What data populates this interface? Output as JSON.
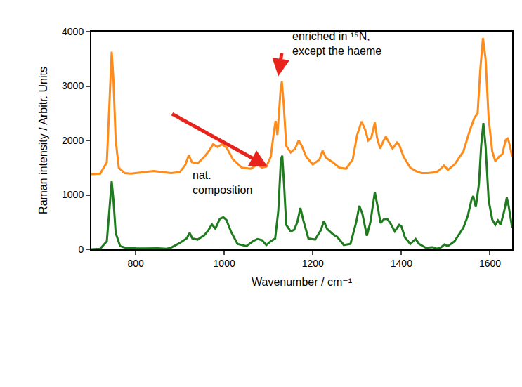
{
  "chart_data": {
    "type": "line",
    "x_label": "Wavenumber / cm⁻¹",
    "y_label": "Raman intensity / Arbitr. Units",
    "xlim": [
      700,
      1650
    ],
    "xticks": [
      800,
      1000,
      1200,
      1400,
      1600
    ],
    "ylim": [
      0,
      4000
    ],
    "yticks": [
      0,
      1000,
      2000,
      3000,
      4000
    ],
    "grid": false,
    "annotations": [
      "enriched in ¹⁵N, except the haeme",
      "nat. composition"
    ],
    "series": [
      {
        "name": "enriched in ¹⁵N, except the haeme",
        "color": "#ff8c1a",
        "x": [
          700,
          720,
          735,
          742,
          746,
          750,
          755,
          762,
          775,
          790,
          800,
          820,
          840,
          860,
          880,
          900,
          912,
          920,
          927,
          940,
          955,
          965,
          975,
          985,
          995,
          1005,
          1020,
          1040,
          1060,
          1075,
          1085,
          1095,
          1105,
          1112,
          1116,
          1120,
          1127,
          1130,
          1134,
          1140,
          1150,
          1160,
          1168,
          1175,
          1185,
          1200,
          1215,
          1222,
          1230,
          1245,
          1260,
          1275,
          1290,
          1300,
          1310,
          1318,
          1325,
          1332,
          1340,
          1345,
          1352,
          1360,
          1365,
          1372,
          1380,
          1390,
          1395,
          1405,
          1420,
          1432,
          1445,
          1460,
          1480,
          1490,
          1496,
          1505,
          1520,
          1540,
          1555,
          1565,
          1572,
          1578,
          1584,
          1590,
          1597,
          1605,
          1612,
          1620,
          1628,
          1635,
          1640,
          1645,
          1650
        ],
        "values": [
          1380,
          1390,
          1600,
          3000,
          3630,
          3100,
          2000,
          1500,
          1400,
          1390,
          1400,
          1420,
          1440,
          1420,
          1400,
          1420,
          1550,
          1730,
          1600,
          1580,
          1700,
          1800,
          1930,
          1880,
          1930,
          1870,
          1650,
          1500,
          1480,
          1560,
          1500,
          1520,
          1700,
          2150,
          2360,
          2100,
          2900,
          3080,
          2700,
          1900,
          1780,
          1850,
          2000,
          1900,
          1700,
          1560,
          1650,
          1810,
          1680,
          1600,
          1500,
          1480,
          1650,
          2100,
          2350,
          2200,
          2000,
          2050,
          2330,
          2050,
          1850,
          2000,
          2070,
          1960,
          1850,
          1960,
          1920,
          1700,
          1500,
          1440,
          1400,
          1400,
          1420,
          1490,
          1540,
          1460,
          1560,
          1800,
          2200,
          2420,
          2500,
          3300,
          3880,
          3500,
          2400,
          1800,
          1620,
          1700,
          1750,
          2000,
          2050,
          1900,
          1700
        ]
      },
      {
        "name": "nat. composition",
        "color": "#1e7b1e",
        "x": [
          700,
          720,
          735,
          742,
          746,
          750,
          755,
          765,
          780,
          790,
          800,
          820,
          850,
          870,
          880,
          900,
          915,
          922,
          928,
          940,
          955,
          965,
          972,
          980,
          990,
          998,
          1005,
          1015,
          1030,
          1050,
          1065,
          1075,
          1085,
          1095,
          1105,
          1115,
          1122,
          1128,
          1131,
          1135,
          1140,
          1150,
          1158,
          1165,
          1172,
          1178,
          1190,
          1205,
          1218,
          1225,
          1232,
          1245,
          1255,
          1270,
          1285,
          1298,
          1305,
          1312,
          1322,
          1330,
          1340,
          1346,
          1353,
          1360,
          1368,
          1375,
          1385,
          1395,
          1400,
          1408,
          1420,
          1432,
          1440,
          1455,
          1470,
          1480,
          1490,
          1497,
          1505,
          1520,
          1540,
          1550,
          1558,
          1562,
          1568,
          1575,
          1580,
          1585,
          1590,
          1597,
          1605,
          1612,
          1618,
          1624,
          1632,
          1638,
          1642,
          1650
        ],
        "values": [
          0,
          10,
          150,
          800,
          1250,
          900,
          300,
          60,
          20,
          30,
          20,
          15,
          20,
          10,
          30,
          120,
          200,
          300,
          200,
          180,
          260,
          360,
          460,
          380,
          560,
          590,
          540,
          330,
          100,
          60,
          150,
          190,
          170,
          80,
          150,
          200,
          700,
          1650,
          1720,
          1200,
          450,
          330,
          360,
          500,
          760,
          550,
          200,
          180,
          350,
          520,
          380,
          280,
          230,
          80,
          100,
          500,
          800,
          650,
          250,
          500,
          1050,
          800,
          480,
          550,
          560,
          480,
          330,
          450,
          420,
          220,
          100,
          190,
          100,
          30,
          40,
          10,
          40,
          90,
          60,
          150,
          400,
          620,
          900,
          980,
          780,
          1200,
          1900,
          2320,
          1900,
          900,
          550,
          450,
          530,
          450,
          700,
          950,
          800,
          400
        ]
      }
    ]
  }
}
